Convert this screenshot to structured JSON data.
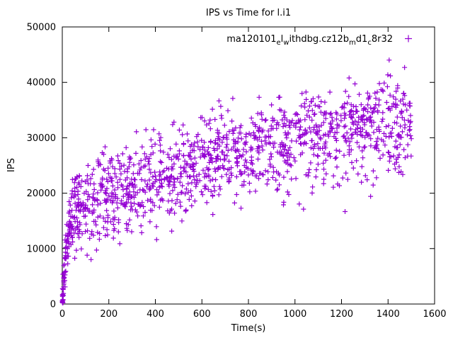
{
  "chart_data": {
    "type": "scatter",
    "title": "IPS vs Time for l.i1",
    "xlabel": "Time(s)",
    "ylabel": "IPS",
    "xlim": [
      0,
      1600
    ],
    "ylim": [
      0,
      50000
    ],
    "xticks": [
      0,
      200,
      400,
      600,
      800,
      1000,
      1200,
      1400,
      1600
    ],
    "yticks": [
      0,
      10000,
      20000,
      30000,
      40000,
      50000
    ],
    "grid": false,
    "legend_position": "top-right-inside",
    "series": [
      {
        "name": "ma120101_el_withdbg.cz12b_md1_c8r32",
        "marker": "plus",
        "color": "#9400D3"
      }
    ],
    "legend": {
      "plain": "ma120101_el_withdbg.cz12b_md1_c8r32",
      "segments": [
        {
          "text": "ma120101",
          "sub": false
        },
        {
          "text": "e",
          "sub": true
        },
        {
          "text": "l",
          "sub": false
        },
        {
          "text": "w",
          "sub": true
        },
        {
          "text": "ithdbg.cz12b",
          "sub": false
        },
        {
          "text": "m",
          "sub": true
        },
        {
          "text": "d1",
          "sub": false
        },
        {
          "text": "c",
          "sub": true
        },
        {
          "text": "8r32",
          "sub": false
        }
      ]
    },
    "trend_keypoints": [
      [
        0,
        500
      ],
      [
        5,
        4000
      ],
      [
        15,
        9500
      ],
      [
        30,
        14000
      ],
      [
        50,
        16500
      ],
      [
        80,
        17800
      ],
      [
        150,
        19000
      ],
      [
        250,
        20500
      ],
      [
        400,
        22500
      ],
      [
        550,
        24500
      ],
      [
        700,
        27000
      ],
      [
        850,
        28500
      ],
      [
        1000,
        29500
      ],
      [
        1150,
        31000
      ],
      [
        1300,
        32000
      ],
      [
        1500,
        33000
      ]
    ],
    "noise_sd": [
      [
        10,
        1400
      ],
      [
        40,
        2400
      ],
      [
        100,
        3000
      ],
      [
        999999,
        4200
      ]
    ],
    "early_count": 140,
    "main_count": 1210,
    "low_outlier_rate": 0.012,
    "marker_half": 3.5,
    "seed": 20240101
  },
  "colors": {
    "marker": "#9400D3",
    "text": "#000000",
    "background": "#ffffff",
    "border": "#000000"
  }
}
